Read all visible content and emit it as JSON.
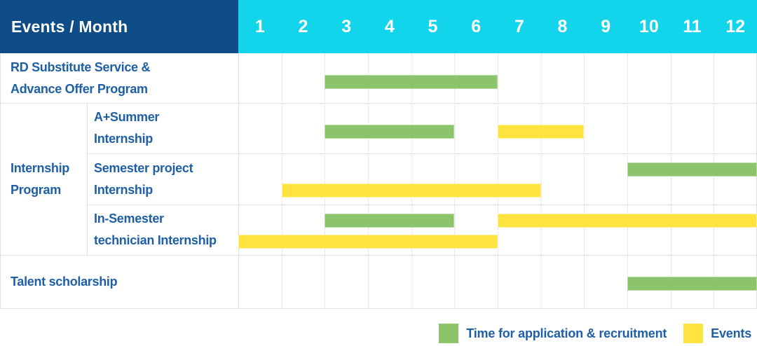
{
  "header": {
    "title": "Events / Month",
    "months": [
      "1",
      "2",
      "3",
      "4",
      "5",
      "6",
      "7",
      "8",
      "9",
      "10",
      "11",
      "12"
    ]
  },
  "colors": {
    "background": "#ffffff",
    "header_navy": "#0d4c86",
    "header_cyan": "#12d5ec",
    "label_blue": "#1e5fa5",
    "bar_green": "#8bc46a",
    "bar_green_edge": "#b9dba2",
    "bar_yellow": "#ffe440",
    "bar_yellow_edge": "#fff0a0",
    "grid_dotted": "#d9d9d9",
    "table_border": "#e0e0e0"
  },
  "chart_data": {
    "type": "bar",
    "subtype": "gantt",
    "title": "Events / Month",
    "xlabel": "Month",
    "x_ticks": [
      1,
      2,
      3,
      4,
      5,
      6,
      7,
      8,
      9,
      10,
      11,
      12
    ],
    "x_range": [
      1,
      12
    ],
    "grid": true,
    "legend_position": "bottom-right",
    "series_legend": [
      {
        "key": "application",
        "label": "Time for application & recruitment",
        "color": "#8bc46a"
      },
      {
        "key": "events",
        "label": "Events",
        "color": "#ffe440"
      }
    ],
    "group": {
      "label_lines": [
        "Internship",
        "Program"
      ],
      "member_rows": [
        "a-plus-summer-internship",
        "semester-project-internship",
        "in-semester-technician-internship"
      ]
    },
    "rows": [
      {
        "id": "rd-substitute-advance-offer",
        "label_lines": [
          "RD Substitute Service &",
          "Advance Offer Program"
        ],
        "indent": false,
        "bars": [
          {
            "series": "application",
            "start_month": 3,
            "end_month": 6,
            "lane": "single"
          }
        ]
      },
      {
        "id": "a-plus-summer-internship",
        "label_lines": [
          "A+Summer",
          "Internship"
        ],
        "indent": true,
        "bars": [
          {
            "series": "application",
            "start_month": 3,
            "end_month": 5,
            "lane": "single"
          },
          {
            "series": "events",
            "start_month": 7,
            "end_month": 8,
            "lane": "single"
          }
        ]
      },
      {
        "id": "semester-project-internship",
        "label_lines": [
          "Semester project",
          "Internship"
        ],
        "indent": true,
        "bars": [
          {
            "series": "application",
            "start_month": 10,
            "end_month": 12,
            "lane": "top"
          },
          {
            "series": "events",
            "start_month": 2,
            "end_month": 7,
            "lane": "bottom"
          }
        ]
      },
      {
        "id": "in-semester-technician-internship",
        "label_lines": [
          "In-Semester",
          "technician Internship"
        ],
        "indent": true,
        "bars": [
          {
            "series": "application",
            "start_month": 3,
            "end_month": 5,
            "lane": "top"
          },
          {
            "series": "events",
            "start_month": 7,
            "end_month": 12,
            "lane": "top"
          },
          {
            "series": "events",
            "start_month": 1,
            "end_month": 6,
            "lane": "bottom"
          }
        ]
      },
      {
        "id": "talent-scholarship",
        "label_lines": [
          "Talent scholarship"
        ],
        "indent": false,
        "bars": [
          {
            "series": "application",
            "start_month": 10,
            "end_month": 12,
            "lane": "single"
          }
        ]
      }
    ]
  }
}
